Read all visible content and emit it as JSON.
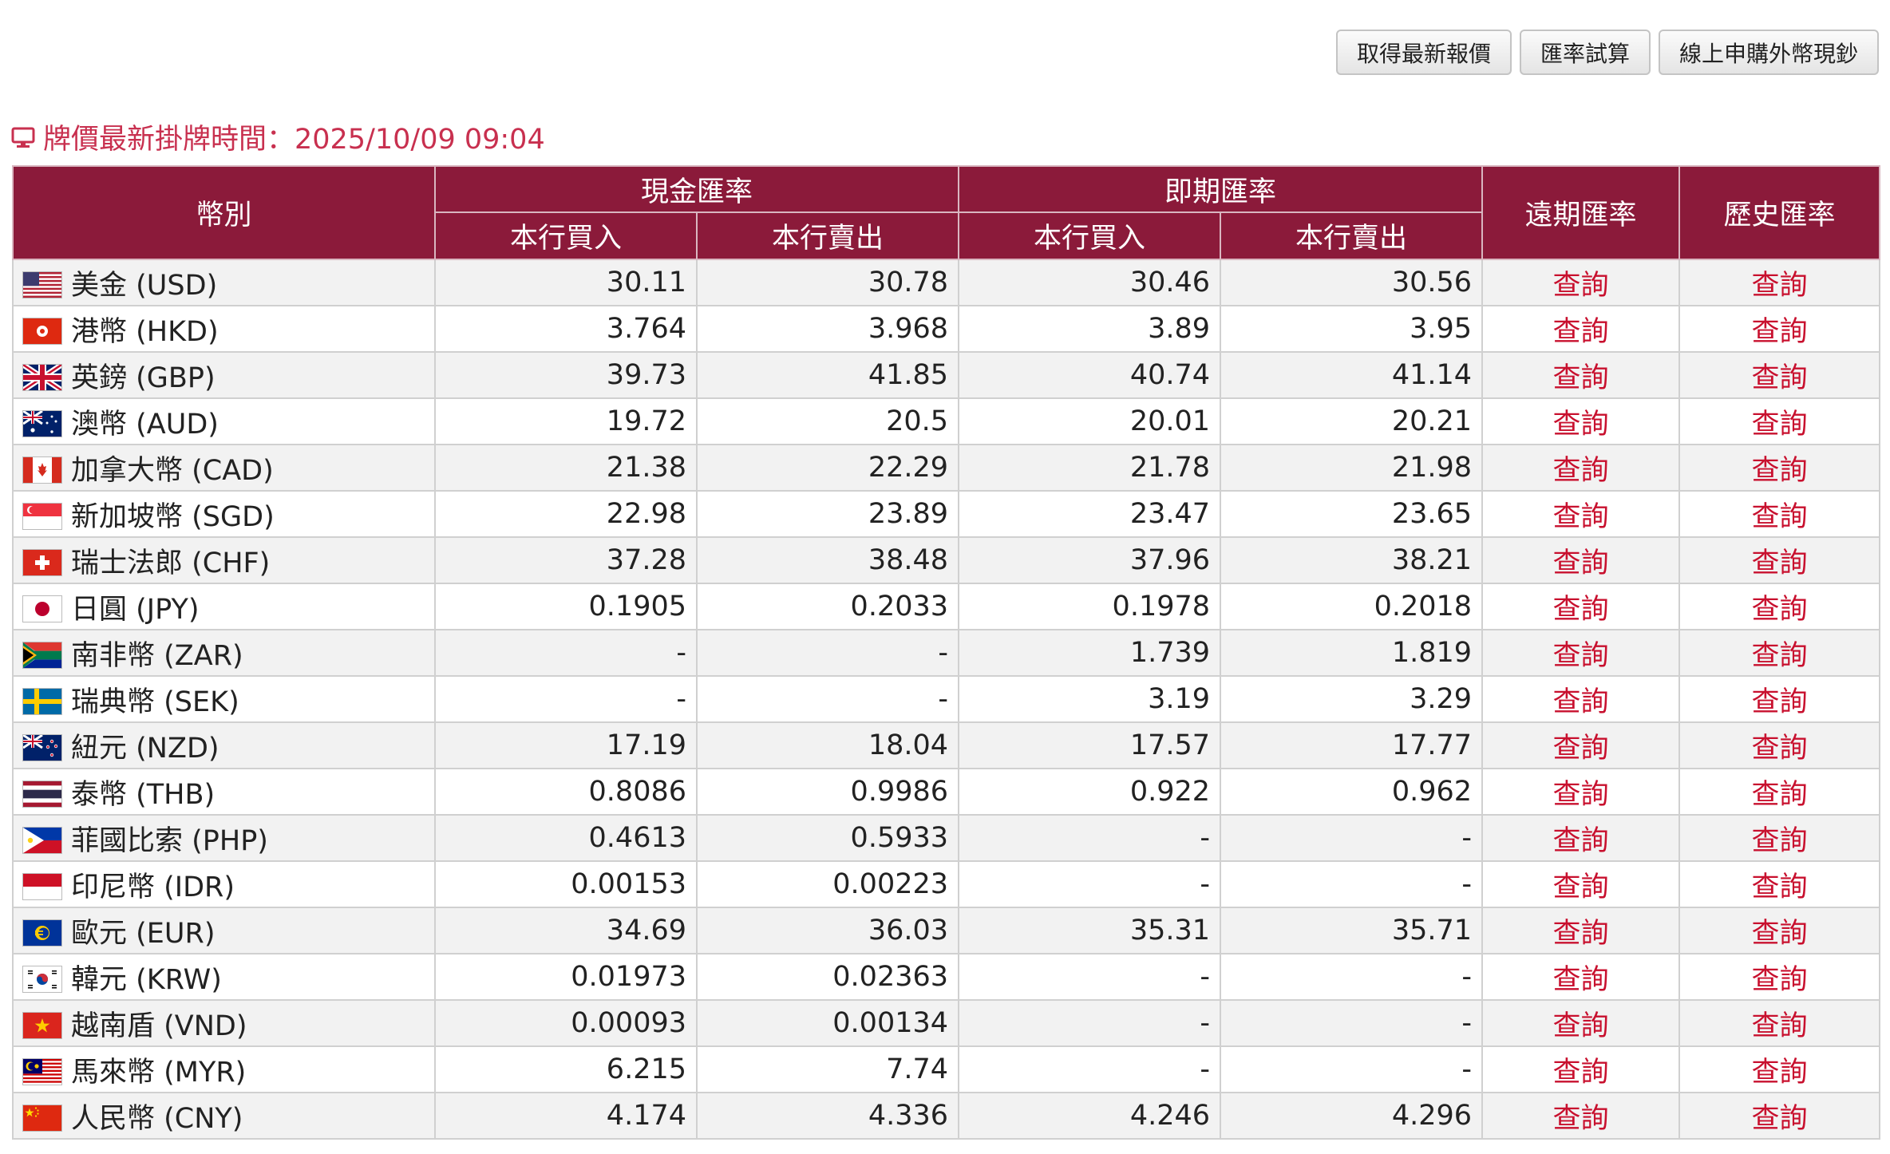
{
  "toolbar": {
    "latest_quote_label": "取得最新報價",
    "calculator_label": "匯率試算",
    "online_purchase_label": "線上申購外幣現鈔"
  },
  "timestamp": {
    "text": "牌價最新掛牌時間：2025/10/09 09:04",
    "color": "#c8304f",
    "icon": "monitor-icon"
  },
  "table": {
    "header_color": "#8b1a3a",
    "link_color": "#c8102e",
    "headers": {
      "currency": "幣別",
      "cash_rate": "現金匯率",
      "spot_rate": "即期匯率",
      "forward_rate": "遠期匯率",
      "history_rate": "歷史匯率",
      "bank_buy": "本行買入",
      "bank_sell": "本行賣出"
    },
    "rows": [
      {
        "flag": "us-flag-icon",
        "name": "美金 (USD)",
        "cash_buy": "30.11",
        "cash_sell": "30.78",
        "spot_buy": "30.46",
        "spot_sell": "30.56",
        "forward": "查詢",
        "history": "查詢"
      },
      {
        "flag": "hk-flag-icon",
        "name": "港幣 (HKD)",
        "cash_buy": "3.764",
        "cash_sell": "3.968",
        "spot_buy": "3.89",
        "spot_sell": "3.95",
        "forward": "查詢",
        "history": "查詢"
      },
      {
        "flag": "gb-flag-icon",
        "name": "英鎊 (GBP)",
        "cash_buy": "39.73",
        "cash_sell": "41.85",
        "spot_buy": "40.74",
        "spot_sell": "41.14",
        "forward": "查詢",
        "history": "查詢"
      },
      {
        "flag": "au-flag-icon",
        "name": "澳幣 (AUD)",
        "cash_buy": "19.72",
        "cash_sell": "20.5",
        "spot_buy": "20.01",
        "spot_sell": "20.21",
        "forward": "查詢",
        "history": "查詢"
      },
      {
        "flag": "ca-flag-icon",
        "name": "加拿大幣 (CAD)",
        "cash_buy": "21.38",
        "cash_sell": "22.29",
        "spot_buy": "21.78",
        "spot_sell": "21.98",
        "forward": "查詢",
        "history": "查詢"
      },
      {
        "flag": "sg-flag-icon",
        "name": "新加坡幣 (SGD)",
        "cash_buy": "22.98",
        "cash_sell": "23.89",
        "spot_buy": "23.47",
        "spot_sell": "23.65",
        "forward": "查詢",
        "history": "查詢"
      },
      {
        "flag": "ch-flag-icon",
        "name": "瑞士法郎 (CHF)",
        "cash_buy": "37.28",
        "cash_sell": "38.48",
        "spot_buy": "37.96",
        "spot_sell": "38.21",
        "forward": "查詢",
        "history": "查詢"
      },
      {
        "flag": "jp-flag-icon",
        "name": "日圓 (JPY)",
        "cash_buy": "0.1905",
        "cash_sell": "0.2033",
        "spot_buy": "0.1978",
        "spot_sell": "0.2018",
        "forward": "查詢",
        "history": "查詢"
      },
      {
        "flag": "za-flag-icon",
        "name": "南非幣 (ZAR)",
        "cash_buy": "-",
        "cash_sell": "-",
        "spot_buy": "1.739",
        "spot_sell": "1.819",
        "forward": "查詢",
        "history": "查詢"
      },
      {
        "flag": "se-flag-icon",
        "name": "瑞典幣 (SEK)",
        "cash_buy": "-",
        "cash_sell": "-",
        "spot_buy": "3.19",
        "spot_sell": "3.29",
        "forward": "查詢",
        "history": "查詢"
      },
      {
        "flag": "nz-flag-icon",
        "name": "紐元 (NZD)",
        "cash_buy": "17.19",
        "cash_sell": "18.04",
        "spot_buy": "17.57",
        "spot_sell": "17.77",
        "forward": "查詢",
        "history": "查詢"
      },
      {
        "flag": "th-flag-icon",
        "name": "泰幣 (THB)",
        "cash_buy": "0.8086",
        "cash_sell": "0.9986",
        "spot_buy": "0.922",
        "spot_sell": "0.962",
        "forward": "查詢",
        "history": "查詢"
      },
      {
        "flag": "ph-flag-icon",
        "name": "菲國比索 (PHP)",
        "cash_buy": "0.4613",
        "cash_sell": "0.5933",
        "spot_buy": "-",
        "spot_sell": "-",
        "forward": "查詢",
        "history": "查詢"
      },
      {
        "flag": "id-flag-icon",
        "name": "印尼幣 (IDR)",
        "cash_buy": "0.00153",
        "cash_sell": "0.00223",
        "spot_buy": "-",
        "spot_sell": "-",
        "forward": "查詢",
        "history": "查詢"
      },
      {
        "flag": "eu-flag-icon",
        "name": "歐元 (EUR)",
        "cash_buy": "34.69",
        "cash_sell": "36.03",
        "spot_buy": "35.31",
        "spot_sell": "35.71",
        "forward": "查詢",
        "history": "查詢"
      },
      {
        "flag": "kr-flag-icon",
        "name": "韓元 (KRW)",
        "cash_buy": "0.01973",
        "cash_sell": "0.02363",
        "spot_buy": "-",
        "spot_sell": "-",
        "forward": "查詢",
        "history": "查詢"
      },
      {
        "flag": "vn-flag-icon",
        "name": "越南盾 (VND)",
        "cash_buy": "0.00093",
        "cash_sell": "0.00134",
        "spot_buy": "-",
        "spot_sell": "-",
        "forward": "查詢",
        "history": "查詢"
      },
      {
        "flag": "my-flag-icon",
        "name": "馬來幣 (MYR)",
        "cash_buy": "6.215",
        "cash_sell": "7.74",
        "spot_buy": "-",
        "spot_sell": "-",
        "forward": "查詢",
        "history": "查詢"
      },
      {
        "flag": "cn-flag-icon",
        "name": "人民幣 (CNY)",
        "cash_buy": "4.174",
        "cash_sell": "4.336",
        "spot_buy": "4.246",
        "spot_sell": "4.296",
        "forward": "查詢",
        "history": "查詢"
      }
    ]
  }
}
